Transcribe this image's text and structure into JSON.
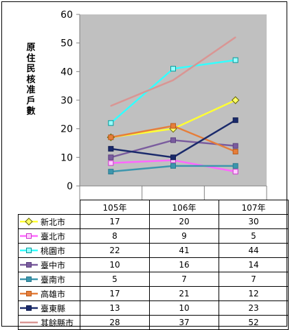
{
  "chart_data": {
    "type": "line",
    "ylabel": "原住民核准戶數",
    "ylim": [
      0,
      60
    ],
    "yticks": [
      0,
      10,
      20,
      30,
      40,
      50,
      60
    ],
    "categories": [
      "105年",
      "106年",
      "107年"
    ],
    "grid": false,
    "legend_position": "table-below",
    "series": [
      {
        "name": "新北市",
        "values": [
          17,
          20,
          30
        ],
        "color": "#ffff33",
        "marker": "diamond",
        "marker_edge": "#666600",
        "marker_fill": "#ffff66"
      },
      {
        "name": "臺北市",
        "values": [
          8,
          9,
          5
        ],
        "color": "#ff66ff",
        "marker": "square",
        "marker_edge": "#cc33cc",
        "marker_fill": "#ffccff"
      },
      {
        "name": "桃園市",
        "values": [
          22,
          41,
          44
        ],
        "color": "#33ffff",
        "marker": "square",
        "marker_edge": "#009999",
        "marker_fill": "#99ffff"
      },
      {
        "name": "臺中市",
        "values": [
          10,
          16,
          14
        ],
        "color": "#7a5c9e",
        "marker": "square",
        "marker_edge": "#5c4080",
        "marker_fill": "#7a5c9e"
      },
      {
        "name": "臺南市",
        "values": [
          5,
          7,
          7
        ],
        "color": "#3c96ad",
        "marker": "square",
        "marker_edge": "#2a7a8f",
        "marker_fill": "#3c96ad"
      },
      {
        "name": "高雄市",
        "values": [
          17,
          21,
          12
        ],
        "color": "#e67e3a",
        "marker": "square",
        "marker_edge": "#b85c1e",
        "marker_fill": "#e67e3a"
      },
      {
        "name": "臺東縣",
        "values": [
          13,
          10,
          23
        ],
        "color": "#1a2a6b",
        "marker": "square",
        "marker_edge": "#101c50",
        "marker_fill": "#1a2a6b"
      },
      {
        "name": "其餘縣市",
        "values": [
          28,
          37,
          52
        ],
        "color": "#d99694",
        "marker": "none",
        "marker_edge": "#d99694",
        "marker_fill": "#d99694"
      }
    ]
  },
  "colors": {
    "plot_background": "#c0c0c0",
    "axis": "#808080"
  }
}
